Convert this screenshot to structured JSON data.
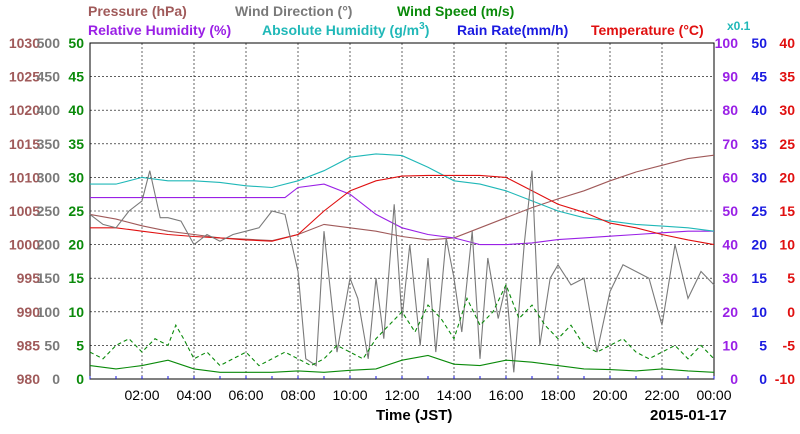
{
  "chart_data": {
    "type": "line",
    "legend": {
      "pressure": "Pressure (hPa)",
      "wind_direction": "Wind Direction (°)",
      "wind_speed": "Wind Speed (m/s)",
      "relative_humidity": "Relative Humidity (%)",
      "absolute_humidity_prefix": "Absolute Humidity (g/m",
      "absolute_humidity_sup": "3",
      "absolute_humidity_suffix": ")",
      "rain_rate": "Rain Rate(mm/h)",
      "temperature": "Temperature (°C)",
      "abs_humidity_scale": "x0.1"
    },
    "xlabel": "Time (JST)",
    "date_label": "2015-01-17",
    "x_range_hours": [
      0,
      24
    ],
    "x_ticks": [
      {
        "h": 2,
        "label": "02:00"
      },
      {
        "h": 4,
        "label": "04:00"
      },
      {
        "h": 6,
        "label": "06:00"
      },
      {
        "h": 8,
        "label": "08:00"
      },
      {
        "h": 10,
        "label": "10:00"
      },
      {
        "h": 12,
        "label": "12:00"
      },
      {
        "h": 14,
        "label": "14:00"
      },
      {
        "h": 16,
        "label": "16:00"
      },
      {
        "h": 18,
        "label": "18:00"
      },
      {
        "h": 20,
        "label": "20:00"
      },
      {
        "h": 22,
        "label": "22:00"
      },
      {
        "h": 24,
        "label": "00:00"
      }
    ],
    "axes": {
      "pressure": {
        "min": 980,
        "max": 1030,
        "ticks": [
          "980",
          "985",
          "990",
          "995",
          "1000",
          "1005",
          "1010",
          "1015",
          "1020",
          "1025",
          "1030"
        ]
      },
      "wind_direction": {
        "min": 0,
        "max": 500,
        "ticks": [
          "0",
          "50",
          "100",
          "150",
          "200",
          "250",
          "300",
          "350",
          "400",
          "450",
          "500"
        ]
      },
      "wind_speed": {
        "min": 0,
        "max": 50,
        "ticks": [
          "0",
          "5",
          "10",
          "15",
          "20",
          "25",
          "30",
          "35",
          "40",
          "45",
          "50"
        ]
      },
      "humidity": {
        "min": 0,
        "max": 100,
        "ticks": [
          "0",
          "10",
          "20",
          "30",
          "40",
          "50",
          "60",
          "70",
          "80",
          "90",
          "100"
        ]
      },
      "rain_rate": {
        "min": 0,
        "max": 50,
        "ticks": [
          "0",
          "5",
          "10",
          "15",
          "20",
          "25",
          "30",
          "35",
          "40",
          "45",
          "50"
        ]
      },
      "temperature": {
        "min": -10,
        "max": 40,
        "ticks": [
          "-10",
          "-5",
          "0",
          "5",
          "10",
          "15",
          "20",
          "25",
          "30",
          "35",
          "40"
        ]
      }
    },
    "colors": {
      "pressure": "#a05a5a",
      "wind_direction": "#7a7a7a",
      "wind_speed": "#0a8a0a",
      "relative_humidity": "#9a20e6",
      "absolute_humidity": "#20b8b8",
      "rain_rate": "#1a1ae0",
      "temperature": "#e01010"
    },
    "series": [
      {
        "key": "pressure",
        "axis": "pressure",
        "x": [
          0,
          1,
          2,
          3,
          4,
          5,
          6,
          7,
          8,
          9,
          10,
          11,
          12,
          13,
          14,
          15,
          16,
          17,
          18,
          19,
          20,
          21,
          22,
          23,
          24
        ],
        "values": [
          1004.5,
          1003.8,
          1002.8,
          1002,
          1001.5,
          1001,
          1000.8,
          1000.6,
          1001.5,
          1003,
          1002.5,
          1002,
          1001.2,
          1000.7,
          1001,
          1002.5,
          1004,
          1005.5,
          1006.8,
          1008,
          1009.5,
          1010.8,
          1011.8,
          1012.8,
          1013.3
        ]
      },
      {
        "key": "relative_humidity",
        "axis": "humidity",
        "x": [
          0,
          1,
          2,
          3,
          4,
          5,
          6,
          7,
          7.5,
          8,
          9,
          10,
          11,
          12,
          13,
          14,
          15,
          16,
          17,
          18,
          19,
          20,
          21,
          22,
          23,
          24
        ],
        "values": [
          54,
          54,
          54,
          54,
          54,
          54,
          54,
          54,
          54,
          57,
          58,
          55,
          49,
          45,
          43,
          42,
          40,
          40,
          40.5,
          41.5,
          42,
          42.5,
          43,
          43.5,
          44,
          44
        ]
      },
      {
        "key": "absolute_humidity",
        "axis": "humidity",
        "x": [
          0,
          1,
          2,
          3,
          4,
          5,
          6,
          7,
          8,
          9,
          10,
          11,
          12,
          13,
          14,
          15,
          16,
          17,
          18,
          19,
          20,
          21,
          22,
          23,
          24
        ],
        "values": [
          58,
          58,
          60,
          59,
          59,
          58.5,
          57.5,
          57,
          59,
          62,
          66,
          67,
          66.5,
          63,
          59,
          58,
          56,
          53,
          50,
          48,
          47,
          46,
          45.5,
          45,
          44
        ]
      },
      {
        "key": "temperature",
        "axis": "temperature",
        "x": [
          0,
          1,
          2,
          3,
          4,
          5,
          6,
          7,
          8,
          9,
          10,
          11,
          12,
          13,
          14,
          15,
          16,
          17,
          18,
          19,
          20,
          21,
          22,
          23,
          24
        ],
        "values": [
          12.5,
          12.5,
          12,
          11.5,
          11.2,
          11,
          10.7,
          10.5,
          11.5,
          15,
          18,
          19.5,
          20.2,
          20.3,
          20.3,
          20.3,
          20,
          18,
          16,
          14.8,
          13.2,
          12.5,
          11.5,
          10.7,
          10
        ]
      },
      {
        "key": "wind_direction",
        "axis": "wind_direction",
        "x": [
          0,
          0.5,
          1,
          1.5,
          2,
          2.3,
          2.7,
          3,
          3.5,
          4,
          4.5,
          5,
          5.5,
          6,
          6.5,
          7,
          7.5,
          8,
          8.3,
          8.7,
          9,
          9.5,
          10,
          10.3,
          10.7,
          11,
          11.3,
          11.7,
          12,
          12.3,
          12.7,
          13,
          13.3,
          13.7,
          14,
          14.3,
          14.7,
          15,
          15.3,
          15.7,
          16,
          16.3,
          16.7,
          17,
          17.3,
          17.7,
          18,
          18.5,
          19,
          19.5,
          20,
          20.5,
          21,
          21.5,
          22,
          22.5,
          23,
          23.5,
          24
        ],
        "values": [
          245,
          230,
          225,
          250,
          265,
          310,
          240,
          240,
          235,
          200,
          215,
          205,
          215,
          220,
          225,
          250,
          245,
          160,
          30,
          20,
          220,
          40,
          150,
          120,
          30,
          150,
          60,
          260,
          90,
          200,
          50,
          180,
          40,
          210,
          150,
          70,
          220,
          30,
          180,
          90,
          140,
          10,
          200,
          310,
          50,
          150,
          170,
          140,
          150,
          40,
          130,
          170,
          160,
          150,
          80,
          200,
          120,
          160,
          140
        ]
      },
      {
        "key": "wind_speed",
        "axis": "wind_speed",
        "x": [
          0,
          1,
          2,
          3,
          4,
          5,
          6,
          7,
          8,
          9,
          10,
          11,
          12,
          13,
          14,
          15,
          16,
          17,
          18,
          19,
          20,
          21,
          22,
          23,
          24
        ],
        "values": [
          2,
          1.5,
          2,
          2.8,
          1.5,
          1,
          1,
          1,
          1.2,
          1,
          1.3,
          1.5,
          2.8,
          3.5,
          2.2,
          2,
          2.8,
          2.5,
          2,
          1.5,
          1.4,
          1.2,
          1.5,
          1.2,
          1
        ]
      },
      {
        "key": "wind_gust",
        "axis": "wind_speed",
        "dashed": true,
        "x": [
          0,
          0.5,
          1,
          1.5,
          2,
          2.5,
          3,
          3.3,
          3.6,
          4,
          4.5,
          5,
          5.5,
          6,
          6.5,
          7,
          7.5,
          8,
          8.5,
          9,
          9.5,
          10,
          10.5,
          11,
          11.5,
          12,
          12.5,
          13,
          13.5,
          14,
          14.5,
          15,
          15.5,
          16,
          16.5,
          17,
          17.5,
          18,
          18.5,
          19,
          19.5,
          20,
          20.5,
          21,
          21.5,
          22,
          22.5,
          23,
          23.5,
          24
        ],
        "values": [
          4,
          3,
          5,
          6,
          4,
          6,
          5,
          8,
          6,
          3,
          4,
          2,
          3,
          4,
          2,
          3,
          4,
          3,
          2,
          3,
          5,
          4,
          3,
          6,
          8,
          10,
          7,
          11,
          9,
          6,
          12,
          8,
          10,
          14,
          9,
          11,
          8,
          6,
          8,
          5,
          4,
          5,
          6,
          4,
          3,
          4,
          5,
          3,
          5,
          3
        ]
      }
    ]
  }
}
